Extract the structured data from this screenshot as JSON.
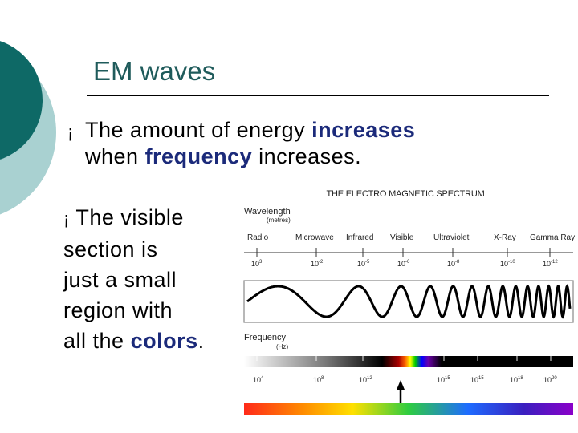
{
  "slide": {
    "title": "EM waves",
    "bullet1": {
      "part1": "The amount of energy ",
      "highlight1": "increases",
      "part2": "when ",
      "highlight2": "frequency",
      "part3": " increases."
    },
    "bullet2": {
      "line1": "The visible",
      "line2": "section is",
      "line3": "just a small",
      "line4": "region with",
      "line5_prefix": "all the ",
      "highlight": "colors",
      "line5_suffix": "."
    },
    "bullet_symbol": "¡"
  },
  "spectrum": {
    "title": "THE ELECTRO MAGNETIC SPECTRUM",
    "wavelength_label": "Wavelength",
    "wavelength_unit": "(metres)",
    "frequency_label": "Frequency",
    "frequency_unit": "(Hz)",
    "bands": [
      "Radio",
      "Microwave",
      "Infrared",
      "Visible",
      "Ultraviolet",
      "X-Ray",
      "Gamma Ray"
    ],
    "wavelength_ticks": [
      {
        "base": "10",
        "exp": "3"
      },
      {
        "base": "10",
        "exp": "-2"
      },
      {
        "base": "10",
        "exp": "-5"
      },
      {
        "base": "10",
        "exp": "-6"
      },
      {
        "base": "10",
        "exp": "-8"
      },
      {
        "base": "10",
        "exp": "-10"
      },
      {
        "base": "10",
        "exp": "-12"
      }
    ],
    "frequency_ticks": [
      {
        "base": "10",
        "exp": "4"
      },
      {
        "base": "10",
        "exp": "8"
      },
      {
        "base": "10",
        "exp": "12"
      },
      {
        "base": "10",
        "exp": "15"
      },
      {
        "base": "10",
        "exp": "15"
      },
      {
        "base": "10",
        "exp": "18"
      },
      {
        "base": "10",
        "exp": "20"
      }
    ],
    "colors": {
      "title": "#1f5b5b",
      "highlight": "#1b2a7a",
      "deco_dark": "#0e6966",
      "deco_light": "#a9d1d1"
    }
  }
}
